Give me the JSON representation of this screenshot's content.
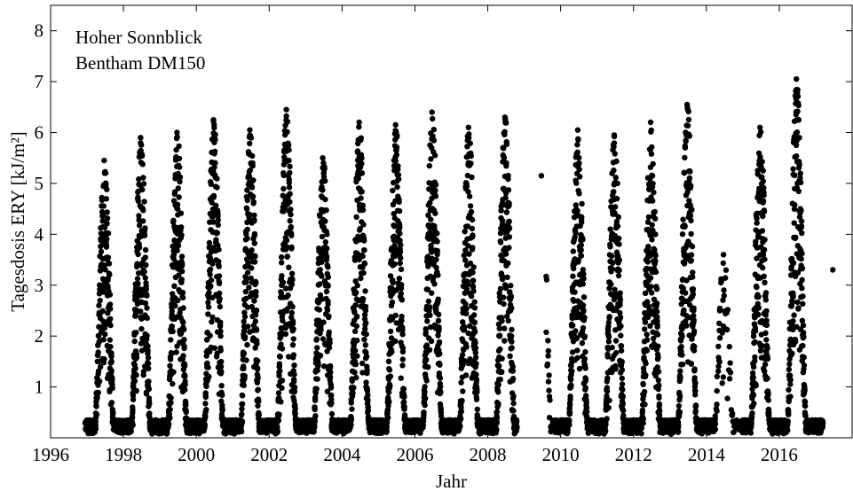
{
  "chart_data": {
    "type": "scatter",
    "title": "",
    "annotation_lines": [
      "Hoher Sonnblick",
      "Bentham DM150"
    ],
    "annotation_placement": "top-left",
    "xlabel": "Jahr",
    "ylabel": "Tagesdosis ERY [kJ/m²]",
    "xlim": [
      1996,
      2018
    ],
    "ylim": [
      0,
      8.5
    ],
    "xticks": [
      1996,
      1998,
      2000,
      2002,
      2004,
      2006,
      2008,
      2010,
      2012,
      2014,
      2016
    ],
    "yticks": [
      1,
      2,
      3,
      4,
      5,
      6,
      7,
      8
    ],
    "grid": false,
    "marker_color": "#000000",
    "series": [
      {
        "name": "",
        "description": "Daily erythemal UV dose, seasonal cycle per year",
        "peak_max_by_year": [
          {
            "year": 1997,
            "max": 5.45
          },
          {
            "year": 1998,
            "max": 5.9
          },
          {
            "year": 1999,
            "max": 6.0
          },
          {
            "year": 2000,
            "max": 6.25
          },
          {
            "year": 2001,
            "max": 6.05
          },
          {
            "year": 2002,
            "max": 6.45
          },
          {
            "year": 2003,
            "max": 5.5
          },
          {
            "year": 2004,
            "max": 6.2
          },
          {
            "year": 2005,
            "max": 6.15
          },
          {
            "year": 2006,
            "max": 6.4
          },
          {
            "year": 2007,
            "max": 6.1
          },
          {
            "year": 2008,
            "max": 6.3
          },
          {
            "year": 2009,
            "max": 5.15
          },
          {
            "year": 2010,
            "max": 6.05
          },
          {
            "year": 2011,
            "max": 5.95
          },
          {
            "year": 2012,
            "max": 6.2
          },
          {
            "year": 2013,
            "max": 6.55
          },
          {
            "year": 2014,
            "max": 3.6
          },
          {
            "year": 2015,
            "max": 6.1
          },
          {
            "year": 2016,
            "max": 7.05
          },
          {
            "year": 2017,
            "max": 3.3
          }
        ],
        "winter_min": 0.05,
        "record_start": 1996.95,
        "record_end": 2017.2,
        "data_gap": [
          2008.8,
          2009.6
        ]
      }
    ]
  }
}
